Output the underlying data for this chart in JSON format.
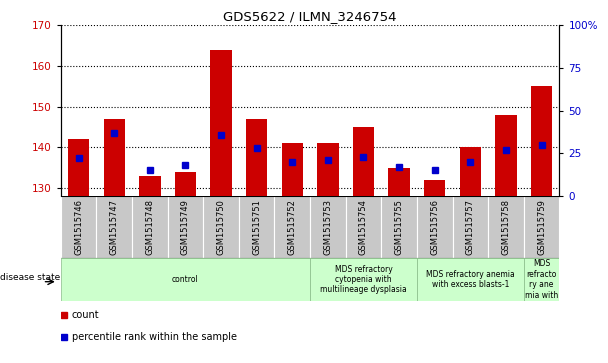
{
  "title": "GDS5622 / ILMN_3246754",
  "samples": [
    "GSM1515746",
    "GSM1515747",
    "GSM1515748",
    "GSM1515749",
    "GSM1515750",
    "GSM1515751",
    "GSM1515752",
    "GSM1515753",
    "GSM1515754",
    "GSM1515755",
    "GSM1515756",
    "GSM1515757",
    "GSM1515758",
    "GSM1515759"
  ],
  "counts": [
    142,
    147,
    133,
    134,
    164,
    147,
    141,
    141,
    145,
    135,
    132,
    140,
    148,
    155
  ],
  "percentile_ranks": [
    22,
    37,
    15,
    18,
    36,
    28,
    20,
    21,
    23,
    17,
    15,
    20,
    27,
    30
  ],
  "ylim_left": [
    128,
    170
  ],
  "ylim_right": [
    0,
    100
  ],
  "yticks_left": [
    130,
    140,
    150,
    160,
    170
  ],
  "yticks_right": [
    0,
    25,
    50,
    75,
    100
  ],
  "bar_color": "#cc0000",
  "dot_color": "#0000cc",
  "bar_bottom": 128,
  "disease_groups": [
    {
      "label": "control",
      "start": 0,
      "end": 7
    },
    {
      "label": "MDS refractory\ncytopenia with\nmultilineage dysplasia",
      "start": 7,
      "end": 10
    },
    {
      "label": "MDS refractory anemia\nwith excess blasts-1",
      "start": 10,
      "end": 13
    },
    {
      "label": "MDS\nrefracto\nry ane\nmia with",
      "start": 13,
      "end": 14
    }
  ],
  "legend_count_color": "#cc0000",
  "legend_pct_color": "#0000cc",
  "bar_width": 0.6,
  "group_color": "#ccffcc"
}
